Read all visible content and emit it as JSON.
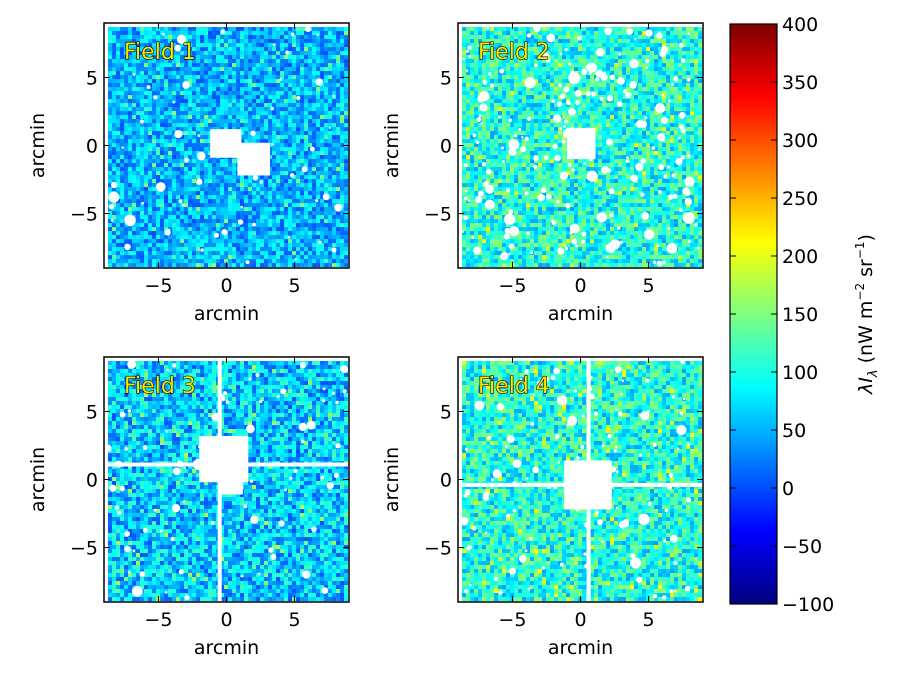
{
  "chart_data": {
    "type": "heatmap",
    "title": "",
    "panels": [
      {
        "id": "field-1",
        "label": "Field 1",
        "xlabel": "arcmin",
        "ylabel": "arcmin",
        "xlim": [
          -9,
          9
        ],
        "ylim": [
          -9,
          9
        ],
        "xticks": [
          -5,
          0,
          5
        ],
        "yticks": [
          -5,
          0,
          5
        ],
        "tick_labels": [
          "−5",
          "0",
          "5"
        ],
        "base_level": 0.3,
        "level_spread": 0.1,
        "source_density": 60,
        "masked_regions": [
          {
            "type": "rect",
            "x0": -1.2,
            "x1": 1.1,
            "y0": -0.9,
            "y1": 1.2
          },
          {
            "type": "rect",
            "x0": 0.8,
            "x1": 3.2,
            "y0": -2.2,
            "y1": 0.2
          }
        ]
      },
      {
        "id": "field-2",
        "label": "Field 2",
        "xlabel": "arcmin",
        "ylabel": "arcmin",
        "xlim": [
          -9,
          9
        ],
        "ylim": [
          -9,
          9
        ],
        "xticks": [
          -5,
          0,
          5
        ],
        "yticks": [
          -5,
          0,
          5
        ],
        "tick_labels": [
          "−5",
          "0",
          "5"
        ],
        "base_level": 0.4,
        "level_spread": 0.12,
        "source_density": 220,
        "masked_regions": [
          {
            "type": "rect",
            "x0": -1.0,
            "x1": 1.1,
            "y0": -1.0,
            "y1": 1.3
          }
        ]
      },
      {
        "id": "field-3",
        "label": "Field 3",
        "xlabel": "arcmin",
        "ylabel": "arcmin",
        "xlim": [
          -9,
          9
        ],
        "ylim": [
          -9,
          9
        ],
        "xticks": [
          -5,
          0,
          5
        ],
        "yticks": [
          -5,
          0,
          5
        ],
        "tick_labels": [
          "−5",
          "0",
          "5"
        ],
        "base_level": 0.32,
        "level_spread": 0.12,
        "source_density": 80,
        "masked_regions": [
          {
            "type": "rect",
            "x0": -2.0,
            "x1": 1.6,
            "y0": -0.2,
            "y1": 3.2
          },
          {
            "type": "rect",
            "x0": -0.4,
            "x1": 1.2,
            "y0": -1.1,
            "y1": 0.0
          },
          {
            "type": "hline",
            "y": 1.1
          },
          {
            "type": "vline",
            "x": -0.5
          }
        ]
      },
      {
        "id": "field-4",
        "label": "Field 4",
        "xlabel": "arcmin",
        "ylabel": "arcmin",
        "xlim": [
          -9,
          9
        ],
        "ylim": [
          -9,
          9
        ],
        "xticks": [
          -5,
          0,
          5
        ],
        "yticks": [
          -5,
          0,
          5
        ],
        "tick_labels": [
          "−5",
          "0",
          "5"
        ],
        "base_level": 0.4,
        "level_spread": 0.12,
        "source_density": 120,
        "masked_regions": [
          {
            "type": "rect",
            "x0": -1.2,
            "x1": 2.3,
            "y0": -2.2,
            "y1": 1.4
          },
          {
            "type": "hline",
            "y": -0.4
          },
          {
            "type": "vline",
            "x": 0.6
          }
        ]
      }
    ],
    "colorbar": {
      "label_lambda": "λI",
      "label_sub": "λ",
      "label_units": " (nW m",
      "label_exp1": "−2",
      "label_mid": " sr",
      "label_exp2": "−1",
      "label_end": ")",
      "range": [
        -100,
        400
      ],
      "ticks": [
        400,
        350,
        300,
        250,
        200,
        150,
        100,
        50,
        0,
        -50,
        -100
      ],
      "tick_labels": [
        "400",
        "350",
        "300",
        "250",
        "200",
        "150",
        "100",
        "50",
        "0",
        "−50",
        "−100"
      ],
      "colormap": "jet",
      "colormap_stops": [
        "#00007f",
        "#0000ff",
        "#007fff",
        "#00ffff",
        "#7fff7f",
        "#ffff00",
        "#ff7f00",
        "#ff0000",
        "#7f0000"
      ]
    }
  }
}
